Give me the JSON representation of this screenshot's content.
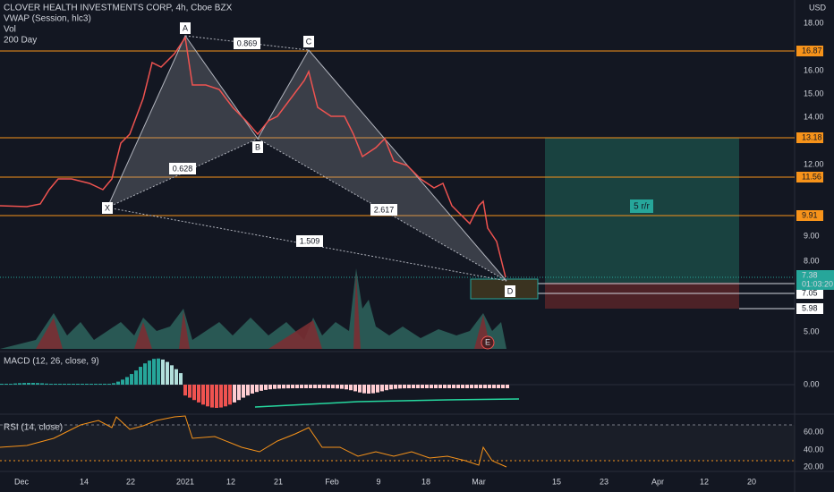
{
  "header": {
    "symbol": "CLOVER HEALTH INVESTMENTS CORP, 4h, Cboe BZX",
    "indicators": [
      "VWAP (Session, hlc3)",
      "Vol",
      "200 Day"
    ]
  },
  "currency": "USD",
  "price_axis": [
    "18.00",
    "16.00",
    "15.00",
    "14.00",
    "12.00",
    "9.00",
    "8.00",
    "5.00"
  ],
  "levels": [
    "16.87",
    "13.18",
    "11.56",
    "9.91",
    "7.05",
    "5.98"
  ],
  "last_price": {
    "price": "7.38",
    "countdown": "01:03:20"
  },
  "pattern": {
    "points": [
      "X",
      "A",
      "B",
      "C",
      "D"
    ],
    "ratios": [
      "0.869",
      "0.628",
      "2.617",
      "1.509"
    ]
  },
  "position_label": "5 r/r",
  "earnings_marker": "E",
  "macd": {
    "title": "MACD (12, 26, close, 9)",
    "axis": [
      "0.00"
    ]
  },
  "rsi": {
    "title": "RSI (14, close)",
    "axis": [
      "60.00",
      "40.00",
      "20.00"
    ]
  },
  "time_axis": [
    "Dec",
    "14",
    "22",
    "2021",
    "12",
    "21",
    "Feb",
    "9",
    "18",
    "Mar",
    "15",
    "23",
    "Apr",
    "12",
    "20"
  ]
}
